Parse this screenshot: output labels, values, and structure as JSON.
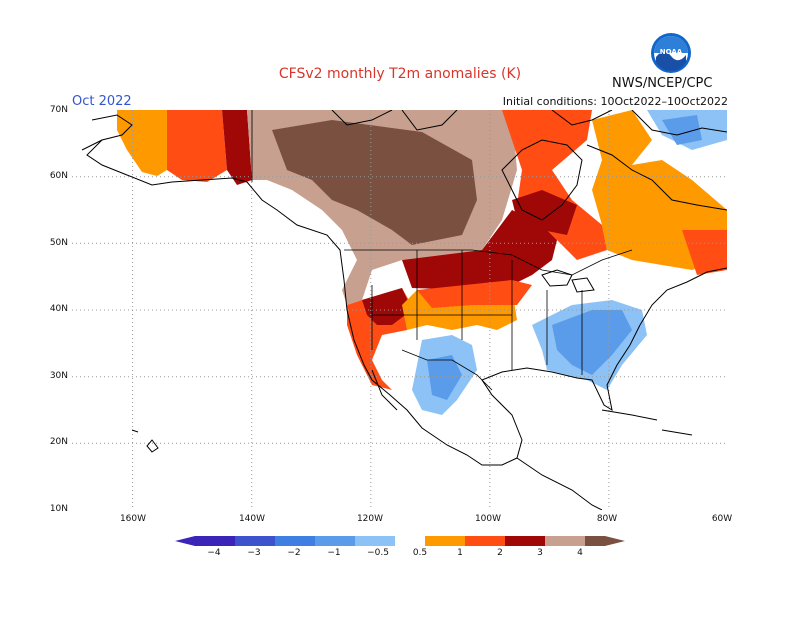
{
  "header": {
    "title": "CFSv2 monthly T2m anomalies (K)",
    "month": "Oct 2022",
    "initial_conditions": "Initial conditions: 10Oct2022–10Oct2022",
    "agency": "NWS/NCEP/CPC",
    "logo_text": "NOAA"
  },
  "axes": {
    "lat_labels": [
      "70N",
      "60N",
      "50N",
      "40N",
      "30N",
      "20N",
      "10N"
    ],
    "lon_labels": [
      "160W",
      "140W",
      "120W",
      "100W",
      "80W",
      "60W"
    ]
  },
  "legend": {
    "labels": [
      "−4",
      "−3",
      "−2",
      "−1",
      "−0.5",
      "0.5",
      "1",
      "2",
      "3",
      "4"
    ],
    "colors": [
      "#3b24b8",
      "#3d52cc",
      "#3f7fe2",
      "#5a9bea",
      "#8cc2f6",
      "#ffffff",
      "#ff9900",
      "#ff4d14",
      "#e02010",
      "#a00808",
      "#c8a090",
      "#7a5140"
    ]
  },
  "colors": {
    "title": "#d9352a",
    "month": "#3355cc",
    "coast": "#000000",
    "grid": "#999999"
  }
}
